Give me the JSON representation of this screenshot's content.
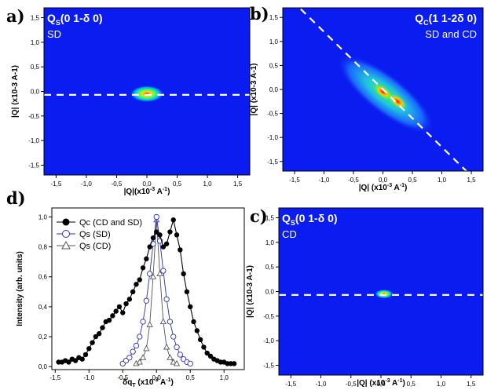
{
  "chart_data": [
    {
      "panel": "a)",
      "type": "heatmap",
      "title_main": "Q",
      "title_sub": "S",
      "title_rest": "(0 1-δ  0)",
      "subtitle": "SD",
      "xlabel": "|Q|(x10",
      "xlabel_sup": "-3",
      "xlabel_end": " A",
      "xlabel_sup2": "-1",
      "xlabel_close": ")",
      "ylabel": "|Q| (x10-3 A-1)",
      "xlim": [
        -1.7,
        1.7
      ],
      "ylim": [
        -1.7,
        1.7
      ],
      "xticks": [
        "-1,5",
        "-1,0",
        "-0,5",
        "0,0",
        "0,5",
        "1,0",
        "1,5"
      ],
      "yticks": [
        "1,5",
        "1,0",
        "0,5",
        "0,0",
        "-0,5",
        "-1,0",
        "-1,5"
      ],
      "dashed_line": {
        "slope": 0,
        "intercept": -0.07
      },
      "spots": [
        {
          "x": 0.0,
          "y": -0.05,
          "intensity": 1.0
        }
      ]
    },
    {
      "panel": "b)",
      "type": "heatmap",
      "title_main": "Q",
      "title_sub": "C",
      "title_rest": "(1 1-2δ  0)",
      "subtitle": "SD and CD",
      "xlabel": "|Q| (x10",
      "xlabel_sup": "-3",
      "xlabel_end": " A",
      "xlabel_sup2": "-1",
      "xlabel_close": ")",
      "ylabel": "|Q| (x10-3 A-1)",
      "xlim": [
        -1.7,
        1.7
      ],
      "ylim": [
        -1.7,
        1.7
      ],
      "xticks": [
        "-1,5",
        "-1,0",
        "-0,5",
        "0,0",
        "0,5",
        "1,0",
        "1,5"
      ],
      "yticks": [
        "1,5",
        "1,0",
        "0,5",
        "0,0",
        "-0,5",
        "-1,0",
        "-1,5"
      ],
      "dashed_line": {
        "slope": -1.2,
        "intercept": 0.0
      },
      "spots": [
        {
          "x": 0.0,
          "y": -0.05,
          "intensity": 0.9
        },
        {
          "x": 0.25,
          "y": -0.25,
          "intensity": 1.0
        }
      ]
    },
    {
      "panel": "c)",
      "type": "heatmap",
      "title_main": "Q",
      "title_sub": "S",
      "title_rest": "(0 1-δ  0)",
      "subtitle": "CD",
      "xlabel": "|Q| (x10",
      "xlabel_sup": "-3",
      "xlabel_end": " A",
      "xlabel_sup2": "-1",
      "xlabel_close": ")",
      "ylabel": "|Q| (x10-3 A-1)",
      "xlim": [
        -1.7,
        1.7
      ],
      "ylim": [
        -1.7,
        1.7
      ],
      "xticks": [
        "-1,5",
        "-1,0",
        "-0,5",
        "0,0",
        "0,5",
        "1,0",
        "1,5"
      ],
      "yticks": [
        "1,5",
        "1,0",
        "0,5",
        "0,0",
        "-0,5",
        "-1,0",
        "-1,5"
      ],
      "dashed_line": {
        "slope": 0,
        "intercept": -0.07
      },
      "spots": [
        {
          "x": 0.05,
          "y": -0.05,
          "intensity": 1.0
        }
      ]
    },
    {
      "panel": "d)",
      "type": "line",
      "xlabel": "δq",
      "xlabel_sub": "T",
      "xlabel_rest": " (x10",
      "xlabel_sup": "-3",
      "xlabel_end": " A",
      "xlabel_sup2": "-1",
      "xlabel_close": ")",
      "ylabel": "Intensity (arb. units)",
      "xlim": [
        -1.55,
        1.3
      ],
      "ylim": [
        -0.02,
        1.06
      ],
      "xticks": [
        -1.5,
        -1.0,
        -0.5,
        0.0,
        0.5,
        1.0
      ],
      "xtick_labels": [
        "-1,5",
        "-1,0",
        "-0,5",
        "0,0",
        "0,5",
        "1,0"
      ],
      "yticks": [
        0.0,
        0.2,
        0.4,
        0.6,
        0.8,
        1.0
      ],
      "ytick_labels": [
        "0,0",
        "0,2",
        "0,4",
        "0,6",
        "0,8",
        "1,0"
      ],
      "legend_position": "top-left",
      "series": [
        {
          "name": "Qc (CD and SD)",
          "marker": "filled-circle",
          "color": "#000000",
          "x": [
            -1.45,
            -1.4,
            -1.35,
            -1.3,
            -1.25,
            -1.2,
            -1.15,
            -1.1,
            -1.05,
            -1.0,
            -0.95,
            -0.9,
            -0.85,
            -0.8,
            -0.75,
            -0.7,
            -0.65,
            -0.6,
            -0.55,
            -0.5,
            -0.45,
            -0.4,
            -0.35,
            -0.3,
            -0.25,
            -0.2,
            -0.15,
            -0.1,
            -0.05,
            0.0,
            0.05,
            0.1,
            0.15,
            0.2,
            0.25,
            0.3,
            0.35,
            0.4,
            0.45,
            0.5,
            0.55,
            0.6,
            0.65,
            0.7,
            0.75,
            0.8,
            0.85,
            0.9,
            0.95,
            1.0,
            1.05,
            1.1,
            1.15
          ],
          "y": [
            0.03,
            0.03,
            0.04,
            0.03,
            0.05,
            0.04,
            0.06,
            0.05,
            0.08,
            0.12,
            0.16,
            0.2,
            0.22,
            0.26,
            0.3,
            0.31,
            0.34,
            0.37,
            0.4,
            0.36,
            0.42,
            0.45,
            0.5,
            0.55,
            0.58,
            0.66,
            0.72,
            0.8,
            0.86,
            0.9,
            0.88,
            0.8,
            0.82,
            0.9,
            0.98,
            0.88,
            0.78,
            0.62,
            0.5,
            0.4,
            0.3,
            0.24,
            0.18,
            0.13,
            0.09,
            0.07,
            0.05,
            0.04,
            0.03,
            0.03,
            0.02,
            0.02,
            0.02
          ]
        },
        {
          "name": "Qs (SD)",
          "marker": "open-circle",
          "color": "#2b2bbd",
          "x": [
            -0.5,
            -0.45,
            -0.4,
            -0.35,
            -0.3,
            -0.25,
            -0.2,
            -0.15,
            -0.1,
            -0.05,
            0.0,
            0.05,
            0.1,
            0.15,
            0.2,
            0.25,
            0.3,
            0.35,
            0.4,
            0.45,
            0.5
          ],
          "y": [
            0.02,
            0.04,
            0.06,
            0.1,
            0.14,
            0.2,
            0.3,
            0.44,
            0.62,
            0.82,
            1.0,
            0.84,
            0.64,
            0.45,
            0.3,
            0.2,
            0.13,
            0.08,
            0.05,
            0.03,
            0.02
          ]
        },
        {
          "name": "Qs (CD)",
          "marker": "open-triangle",
          "color": "#555555",
          "x": [
            -0.3,
            -0.25,
            -0.2,
            -0.15,
            -0.1,
            -0.05,
            0.0,
            0.05,
            0.1,
            0.15,
            0.2,
            0.25,
            0.3
          ],
          "y": [
            0.02,
            0.03,
            0.06,
            0.12,
            0.28,
            0.6,
            0.98,
            0.62,
            0.3,
            0.13,
            0.06,
            0.03,
            0.02
          ]
        }
      ]
    }
  ]
}
